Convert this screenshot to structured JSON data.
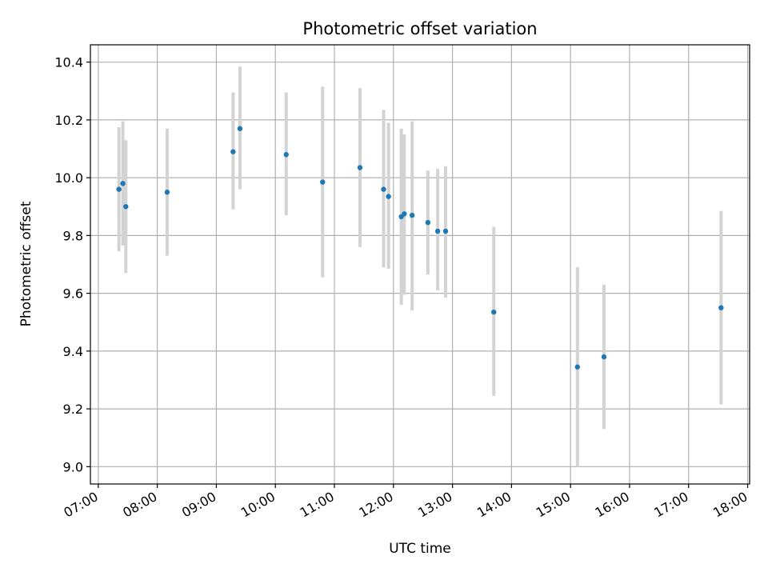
{
  "chart_data": {
    "type": "scatter",
    "title": "Photometric offset variation",
    "xlabel": "UTC time",
    "ylabel": "Photometric offset",
    "x_ticks": [
      "07:00",
      "08:00",
      "09:00",
      "10:00",
      "11:00",
      "12:00",
      "13:00",
      "14:00",
      "15:00",
      "16:00",
      "17:00",
      "18:00"
    ],
    "y_ticks": [
      "9.0",
      "9.2",
      "9.4",
      "9.6",
      "9.8",
      "10.0",
      "10.2",
      "10.4"
    ],
    "xlim": [
      "06:52",
      "18:02"
    ],
    "ylim": [
      8.94,
      10.46
    ],
    "grid": true,
    "marker_color": "#1f77b4",
    "errorbar_color": "#d3d3d3",
    "points": [
      {
        "t": "07:21",
        "y": 9.96,
        "lo": 9.745,
        "hi": 10.175
      },
      {
        "t": "07:25",
        "y": 9.98,
        "lo": 9.765,
        "hi": 10.195
      },
      {
        "t": "07:28",
        "y": 9.9,
        "lo": 9.67,
        "hi": 10.13
      },
      {
        "t": "08:10",
        "y": 9.95,
        "lo": 9.73,
        "hi": 10.17
      },
      {
        "t": "09:17",
        "y": 10.09,
        "lo": 9.89,
        "hi": 10.295
      },
      {
        "t": "09:24",
        "y": 10.17,
        "lo": 9.96,
        "hi": 10.385
      },
      {
        "t": "10:11",
        "y": 10.08,
        "lo": 9.87,
        "hi": 10.295
      },
      {
        "t": "10:48",
        "y": 9.985,
        "lo": 9.655,
        "hi": 10.315
      },
      {
        "t": "11:26",
        "y": 10.035,
        "lo": 9.76,
        "hi": 10.31
      },
      {
        "t": "11:50",
        "y": 9.96,
        "lo": 9.69,
        "hi": 10.235
      },
      {
        "t": "11:55",
        "y": 9.935,
        "lo": 9.685,
        "hi": 10.19
      },
      {
        "t": "12:08",
        "y": 9.865,
        "lo": 9.56,
        "hi": 10.17
      },
      {
        "t": "12:11",
        "y": 9.875,
        "lo": 9.595,
        "hi": 10.15
      },
      {
        "t": "12:19",
        "y": 9.87,
        "lo": 9.54,
        "hi": 10.195
      },
      {
        "t": "12:35",
        "y": 9.845,
        "lo": 9.665,
        "hi": 10.025
      },
      {
        "t": "12:45",
        "y": 9.815,
        "lo": 9.61,
        "hi": 10.03
      },
      {
        "t": "12:53",
        "y": 9.815,
        "lo": 9.585,
        "hi": 10.04
      },
      {
        "t": "13:42",
        "y": 9.535,
        "lo": 9.245,
        "hi": 9.83
      },
      {
        "t": "15:07",
        "y": 9.345,
        "lo": 9.0,
        "hi": 9.69
      },
      {
        "t": "15:34",
        "y": 9.38,
        "lo": 9.13,
        "hi": 9.63
      },
      {
        "t": "17:33",
        "y": 9.55,
        "lo": 9.215,
        "hi": 9.885
      }
    ]
  }
}
